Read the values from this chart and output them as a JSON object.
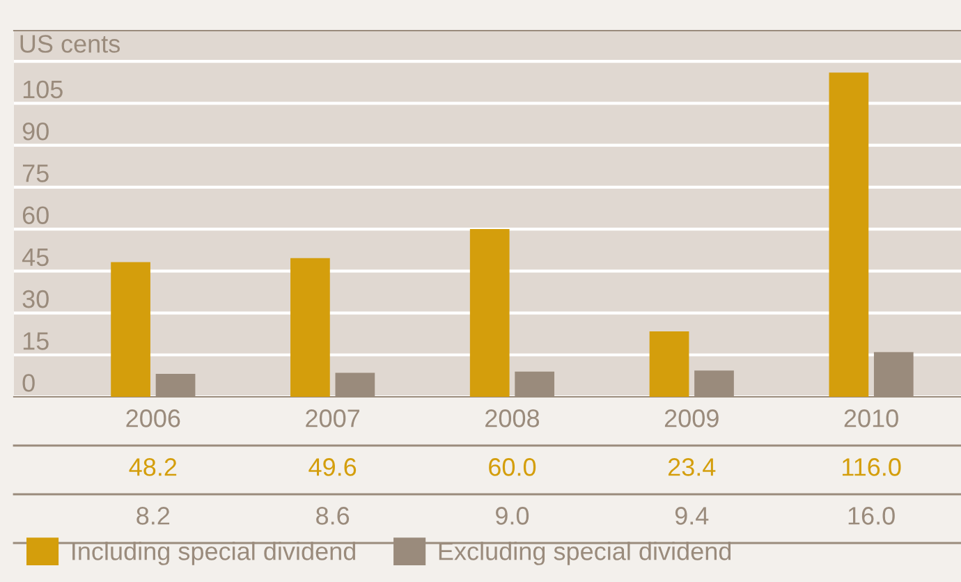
{
  "chart_data": {
    "type": "bar",
    "ylabel": "US cents",
    "categories": [
      "2006",
      "2007",
      "2008",
      "2009",
      "2010"
    ],
    "series": [
      {
        "name": "Including special dividend",
        "color": "#d49e0c",
        "values": [
          48.2,
          49.6,
          60.0,
          23.4,
          116.0
        ],
        "value_labels": [
          "48.2",
          "49.6",
          "60.0",
          "23.4",
          "116.0"
        ]
      },
      {
        "name": "Excluding special dividend",
        "color": "#9a8b7c",
        "values": [
          8.2,
          8.6,
          9.0,
          9.4,
          16.0
        ],
        "value_labels": [
          "8.2",
          "8.6",
          "9.0",
          "9.4",
          "16.0"
        ]
      }
    ],
    "ylim": [
      0,
      131
    ],
    "yticks": [
      0,
      15,
      30,
      45,
      60,
      75,
      90,
      105,
      {
        "value": 120,
        "label": null
      }
    ],
    "grid": "y",
    "legend": "bottom"
  }
}
